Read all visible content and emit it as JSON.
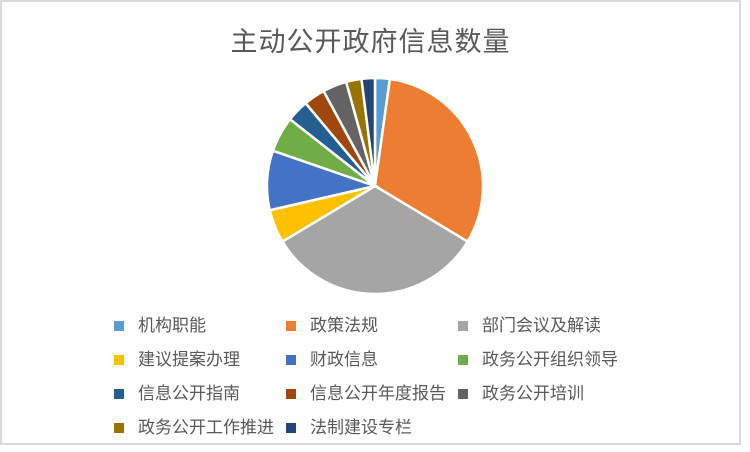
{
  "frame": {
    "border_color": "#D9D9D9",
    "background_color": "#FFFFFF"
  },
  "chart_data": {
    "type": "pie",
    "title": "主动公开政府信息数量",
    "title_color": "#595959",
    "legend_position": "bottom",
    "legend_text_color": "#595959",
    "start_angle_deg": 0,
    "direction": "clockwise",
    "slice_border_color": "#FFFFFF",
    "slices": [
      {
        "label": "机构职能",
        "percent": 2.2,
        "color": "#5B9BD5"
      },
      {
        "label": "政策法规",
        "percent": 31.4,
        "color": "#ED7D31"
      },
      {
        "label": "部门会议及解读",
        "percent": 32.8,
        "color": "#A5A5A5"
      },
      {
        "label": "建议提案办理",
        "percent": 5.0,
        "color": "#FFC000"
      },
      {
        "label": "财政信息",
        "percent": 8.9,
        "color": "#4472C4"
      },
      {
        "label": "政务公开组织领导",
        "percent": 5.3,
        "color": "#70AD47"
      },
      {
        "label": "信息公开指南",
        "percent": 3.3,
        "color": "#255E91"
      },
      {
        "label": "信息公开年度报告",
        "percent": 3.2,
        "color": "#9E480E"
      },
      {
        "label": "政务公开培训",
        "percent": 3.6,
        "color": "#636363"
      },
      {
        "label": "政务公开工作推进",
        "percent": 2.3,
        "color": "#997300"
      },
      {
        "label": "法制建设专栏",
        "percent": 2.0,
        "color": "#264478"
      }
    ]
  }
}
